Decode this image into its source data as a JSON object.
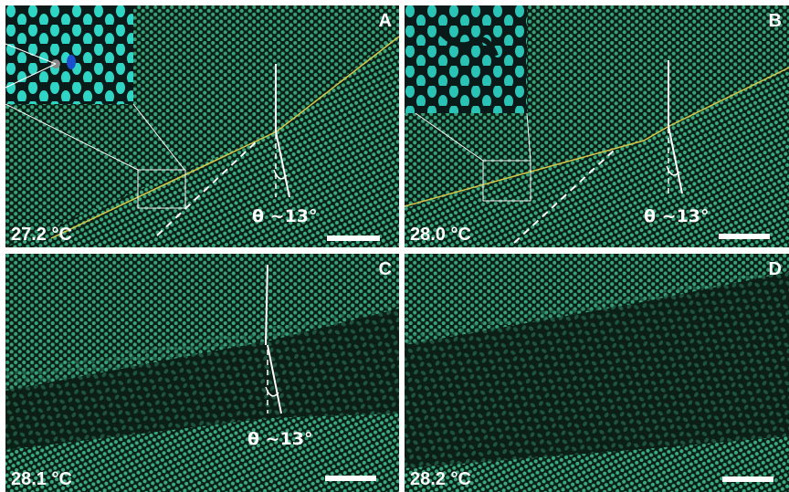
{
  "panels": [
    {
      "id": "A",
      "letter": "A",
      "temperature": "27.2 °C",
      "angle": "θ ~13°",
      "has_inset": true
    },
    {
      "id": "B",
      "letter": "B",
      "temperature": "28.0 °C",
      "angle": "θ ~13°",
      "has_inset": true
    },
    {
      "id": "C",
      "letter": "C",
      "temperature": "28.1 °C",
      "angle": "θ ~13°",
      "has_inset": false
    },
    {
      "id": "D",
      "letter": "D",
      "temperature": "28.2 °C",
      "angle": "",
      "has_inset": false
    }
  ],
  "colors": {
    "dots": "#3fb98a",
    "background": "#0b1f17",
    "grain_boundary": "#d8c84a",
    "annotation": "#ffffff",
    "inset_dots": "#2fd6c6"
  }
}
